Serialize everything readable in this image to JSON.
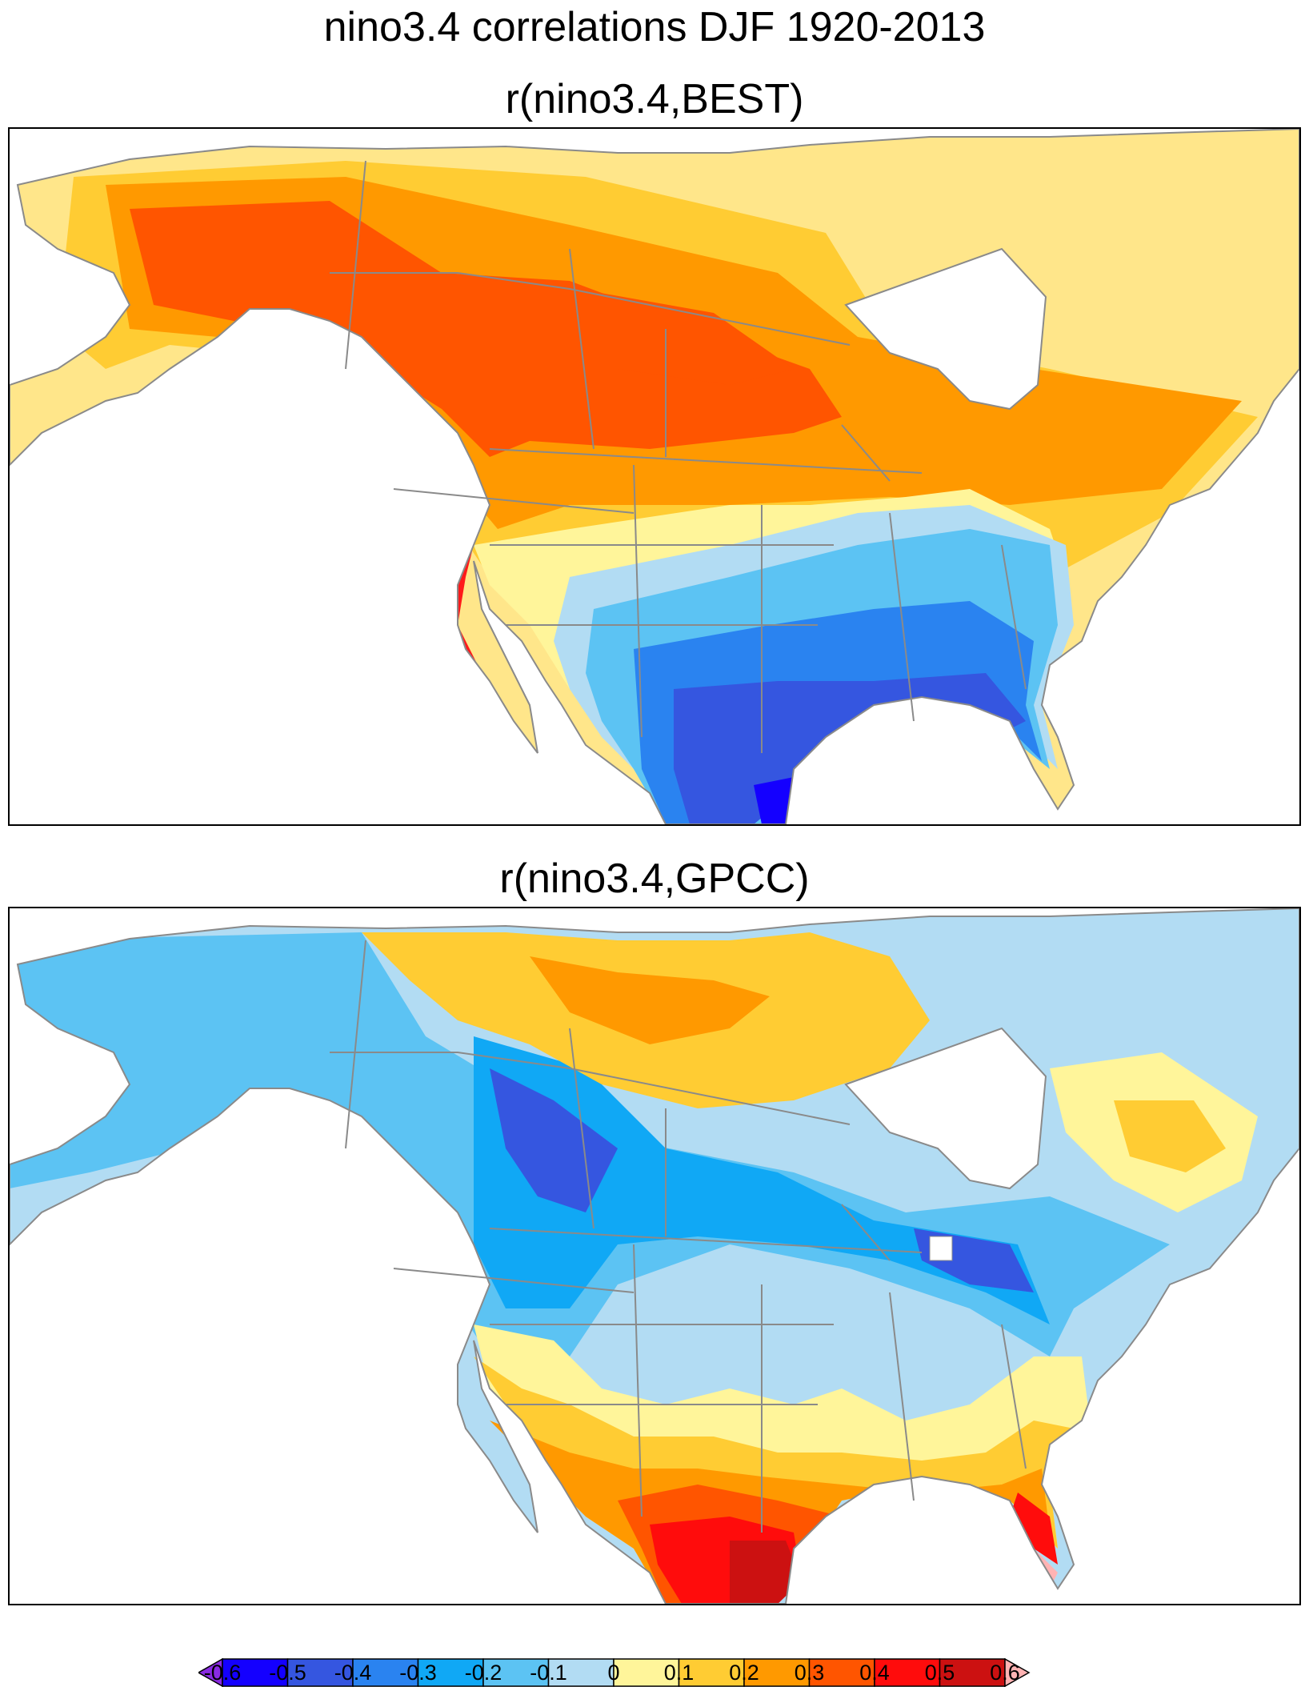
{
  "figure": {
    "main_title": "nino3.4 correlations DJF 1920-2013",
    "panels": [
      {
        "title": "r(nino3.4,BEST)"
      },
      {
        "title": "r(nino3.4,GPCC)"
      }
    ]
  },
  "colorbar": {
    "labels": [
      "-0.6",
      "-0.5",
      "-0.4",
      "-0.3",
      "-0.2",
      "-0.1",
      "0",
      "0.1",
      "0.2",
      "0.3",
      "0.4",
      "0.5",
      "0.6"
    ],
    "colors": [
      "#8a2be2",
      "#1400ff",
      "#3556e0",
      "#2a83f0",
      "#10a8f5",
      "#5cc3f3",
      "#b2dcf3",
      "#fff59a",
      "#ffcc33",
      "#ff9900",
      "#ff5500",
      "#ff0c0c",
      "#cc1111",
      "#ffb3b3"
    ]
  },
  "map": {
    "ocean_color": "#ffffff",
    "boundary_color": "#8a8a8a"
  }
}
